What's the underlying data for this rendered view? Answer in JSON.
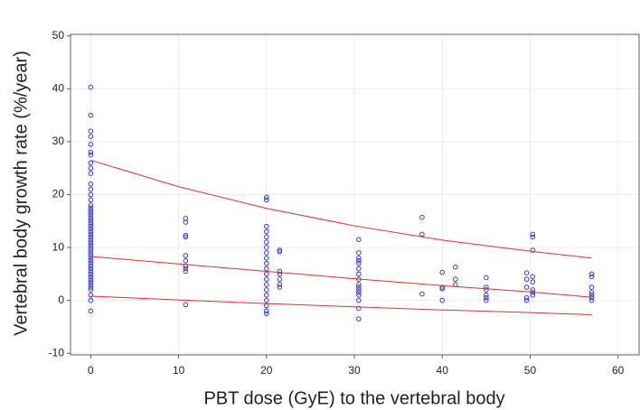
{
  "chart_data": {
    "type": "scatter",
    "x_label": "PBT dose (GyE) to the vertebral body",
    "y_label": "Vertebral body growth rate (%/year)",
    "xlim": [
      -2.3,
      62.4
    ],
    "ylim": [
      -10.3,
      50.3
    ],
    "xticks": [
      0,
      10,
      20,
      30,
      40,
      50,
      60
    ],
    "yticks": [
      -10,
      0,
      10,
      20,
      30,
      40,
      50
    ],
    "grid": true,
    "series": [
      {
        "mode": "markers",
        "color": "#3a3acc",
        "x": [
          0,
          0,
          0,
          0,
          0,
          0,
          0,
          0,
          0,
          0,
          0,
          0,
          0,
          0,
          0,
          0,
          0,
          0,
          0,
          0,
          0,
          0,
          0,
          0,
          0,
          0,
          0,
          0,
          0,
          0,
          0,
          0,
          0,
          0,
          0,
          0,
          0,
          0,
          0,
          0,
          0,
          0,
          0,
          0,
          0,
          0,
          0,
          0,
          0,
          0
        ],
        "values": [
          40.3,
          35,
          32,
          31,
          29.5,
          28,
          27.5,
          26,
          25,
          24,
          22,
          21,
          20,
          19,
          18,
          17.5,
          17,
          16.5,
          16,
          15.5,
          15,
          14.5,
          14,
          13.5,
          13,
          12.5,
          12,
          11.5,
          11,
          10.5,
          10,
          9.5,
          9,
          8.5,
          8,
          7.5,
          7,
          6.5,
          6,
          5.5,
          5,
          4.5,
          4,
          3.5,
          3,
          2.5,
          2,
          1,
          0,
          -2
        ]
      },
      {
        "mode": "markers",
        "color": "#3a3acc",
        "x": [
          10.8,
          10.8,
          10.8,
          10.8,
          10.8,
          10.8,
          10.8,
          10.8,
          10.8,
          10.8
        ],
        "values": [
          15.5,
          14.8,
          12.3,
          12,
          8.5,
          7.5,
          6.5,
          6,
          5.5,
          -0.8
        ]
      },
      {
        "mode": "markers",
        "color": "#3a3acc",
        "x": [
          20,
          20,
          20,
          20,
          20,
          20,
          20,
          20,
          20,
          20,
          20,
          20,
          20,
          20,
          20,
          20,
          20,
          20,
          20,
          20
        ],
        "values": [
          19.5,
          19,
          14,
          13,
          12,
          11,
          10,
          9,
          8,
          7,
          6,
          5,
          4,
          3,
          2,
          1,
          0,
          -1,
          -2,
          -2.5
        ]
      },
      {
        "mode": "markers",
        "color": "#3a3acc",
        "x": [
          21.5,
          21.5,
          21.5,
          21.5,
          21.5,
          21.5,
          21.5
        ],
        "values": [
          9.5,
          9.2,
          5.5,
          5,
          4,
          3,
          2.5
        ]
      },
      {
        "mode": "markers",
        "color": "#3a3acc",
        "x": [
          30.5,
          30.5,
          30.5,
          30.5,
          30.5,
          30.5,
          30.5,
          30.5,
          30.5,
          30.5,
          30.5,
          30.5,
          30.5,
          30.5,
          30.5,
          30.5
        ],
        "values": [
          11.5,
          9,
          8,
          7.5,
          7,
          6,
          5,
          4,
          3,
          2.5,
          2,
          1.5,
          1,
          0,
          -1.5,
          -3.5
        ]
      },
      {
        "mode": "markers",
        "color": "#3a3acc",
        "x": [
          37.7,
          37.7,
          37.7
        ],
        "values": [
          15.7,
          12.5,
          1.2
        ]
      },
      {
        "mode": "markers",
        "color": "#3a3acc",
        "x": [
          40,
          40,
          40,
          40
        ],
        "values": [
          5.3,
          2.5,
          2.2,
          0
        ]
      },
      {
        "mode": "markers",
        "color": "#3a3acc",
        "x": [
          41.5,
          41.5,
          41.5
        ],
        "values": [
          6.3,
          4,
          3
        ]
      },
      {
        "mode": "markers",
        "color": "#3a3acc",
        "x": [
          45,
          45,
          45,
          45,
          45,
          45
        ],
        "values": [
          4.3,
          2.5,
          2,
          1,
          0.5,
          0
        ]
      },
      {
        "mode": "markers",
        "color": "#3a3acc",
        "x": [
          49.6,
          49.6,
          49.6,
          49.6,
          49.6
        ],
        "values": [
          5.2,
          4,
          2.5,
          0.5,
          0
        ]
      },
      {
        "mode": "markers",
        "color": "#3a3acc",
        "x": [
          50.3,
          50.3,
          50.3,
          50.3,
          50.3,
          50.3,
          50.3,
          50.3
        ],
        "values": [
          12.5,
          12,
          9.5,
          4.5,
          3.5,
          2,
          1.5,
          1
        ]
      },
      {
        "mode": "markers",
        "color": "#3a3acc",
        "x": [
          57,
          57,
          57,
          57,
          57,
          57,
          57
        ],
        "values": [
          5,
          4.5,
          2.5,
          1.5,
          1,
          0.5,
          0
        ]
      },
      {
        "mode": "line",
        "color": "#e03030",
        "x": [
          0,
          10,
          20,
          30,
          40,
          50,
          57
        ],
        "values": [
          26.5,
          21.5,
          17.4,
          14.1,
          11.4,
          9.3,
          8.0
        ]
      },
      {
        "mode": "line",
        "color": "#e03030",
        "x": [
          0,
          10,
          20,
          30,
          40,
          50,
          57
        ],
        "values": [
          8.3,
          6.9,
          5.5,
          4.1,
          2.8,
          1.6,
          0.6
        ]
      },
      {
        "mode": "line",
        "color": "#e03030",
        "x": [
          0,
          10,
          20,
          30,
          40,
          50,
          57
        ],
        "values": [
          0.8,
          0.1,
          -0.6,
          -1.2,
          -1.8,
          -2.3,
          -2.7
        ]
      }
    ]
  }
}
